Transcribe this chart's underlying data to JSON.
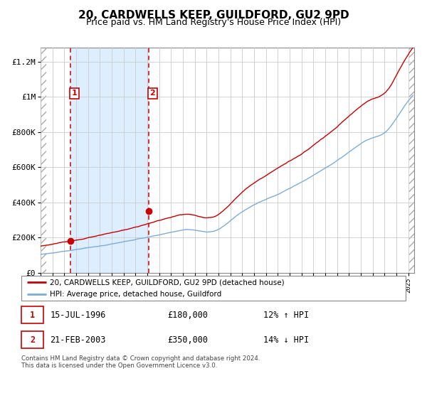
{
  "title": "20, CARDWELLS KEEP, GUILDFORD, GU2 9PD",
  "subtitle": "Price paid vs. HM Land Registry's House Price Index (HPI)",
  "legend_line1": "20, CARDWELLS KEEP, GUILDFORD, GU2 9PD (detached house)",
  "legend_line2": "HPI: Average price, detached house, Guildford",
  "footnote": "Contains HM Land Registry data © Crown copyright and database right 2024.\nThis data is licensed under the Open Government Licence v3.0.",
  "transaction1_date": "15-JUL-1996",
  "transaction1_price": "£180,000",
  "transaction1_hpi": "12% ↑ HPI",
  "transaction2_date": "21-FEB-2003",
  "transaction2_price": "£350,000",
  "transaction2_hpi": "14% ↓ HPI",
  "red_line_color": "#cc0000",
  "blue_line_color": "#7aaddb",
  "dashed_line_color": "#cc0000",
  "shaded_fill_color": "#ddeeff",
  "point1_x": 1996.54,
  "point1_y": 180000,
  "point2_x": 2003.13,
  "point2_y": 350000,
  "vline1_x": 1996.54,
  "vline2_x": 2003.13,
  "xlim": [
    1994.0,
    2025.5
  ],
  "ylim": [
    0,
    1280000
  ],
  "yticks": [
    0,
    200000,
    400000,
    600000,
    800000,
    1000000,
    1200000
  ],
  "ytick_labels": [
    "£0",
    "£200K",
    "£400K",
    "£600K",
    "£800K",
    "£1M",
    "£1.2M"
  ],
  "background_color": "#ffffff",
  "grid_color": "#cccccc",
  "title_fontsize": 11,
  "subtitle_fontsize": 9
}
